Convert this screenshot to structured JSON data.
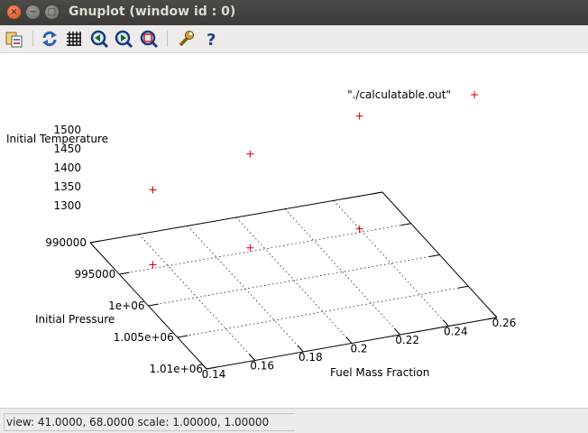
{
  "window": {
    "title": "Gnuplot (window id : 0)"
  },
  "toolbar": {
    "icons": [
      "copy-to-clipboard-icon",
      "replot-icon",
      "grid-icon",
      "zoom-previous-icon",
      "zoom-next-icon",
      "unzoom-icon",
      "configure-icon",
      "help-icon"
    ]
  },
  "status": {
    "text": "view: 41.0000, 68.0000  scale: 1.00000, 1.00000"
  },
  "colors": {
    "point": "#cc0000",
    "titlebar": "#3c3b37"
  },
  "chart_data": {
    "type": "scatter",
    "legend": "\"./calculatable.out\"",
    "legend_placement": "top-right",
    "xlabel": "Fuel Mass Fraction",
    "ylabel": "Initial Pressure",
    "zlabel": "Initial Temperature",
    "x_ticks": [
      "0.14",
      "0.16",
      "0.18",
      "0.2",
      "0.22",
      "0.24",
      "0.26"
    ],
    "y_ticks": [
      "990000",
      "995000",
      "1e+06",
      "1.005e+06",
      "1.01e+06"
    ],
    "z_ticks": [
      "1300",
      "1350",
      "1400",
      "1450",
      "1500"
    ],
    "xlim": [
      0.14,
      0.26
    ],
    "ylim": [
      990000,
      1010000
    ],
    "zlim": [
      1300,
      1500
    ],
    "points": [
      {
        "x": 0.155,
        "y": 994500,
        "z": 1350
      },
      {
        "x": 0.195,
        "y": 994500,
        "z": 1400
      },
      {
        "x": 0.24,
        "y": 994500,
        "z": 1450
      }
    ],
    "view": [
      41,
      68
    ],
    "grid": true
  }
}
